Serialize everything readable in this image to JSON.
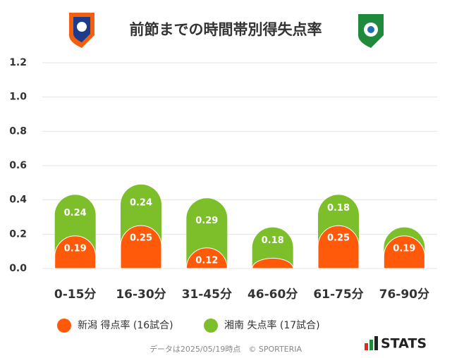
{
  "chart_data": {
    "type": "bar",
    "stacked": true,
    "title": "前節までの時間帯別得失点率",
    "categories": [
      "0-15分",
      "16-30分",
      "31-45分",
      "46-60分",
      "61-75分",
      "76-90分"
    ],
    "series": [
      {
        "name": "新潟 得点率 (16試合)",
        "color": "#ff5a0a",
        "values": [
          0.19,
          0.25,
          0.12,
          0.06,
          0.25,
          0.19
        ],
        "value_labels": [
          "0.19",
          "0.25",
          "0.12",
          null,
          "0.25",
          "0.19"
        ]
      },
      {
        "name": "湘南 失点率 (17試合)",
        "color": "#7dbf2a",
        "values": [
          0.24,
          0.24,
          0.29,
          0.18,
          0.18,
          0.05
        ],
        "value_labels": [
          "0.24",
          "0.24",
          "0.29",
          "0.18",
          "0.18",
          null
        ]
      }
    ],
    "ylim": [
      0,
      1.2
    ],
    "yticks": [
      {
        "value": 0,
        "label": "0.0"
      },
      0.2,
      0.4,
      0.6,
      0.8,
      {
        "value": 1,
        "label": "1.0"
      },
      1.2
    ],
    "grid": true,
    "footer": "データは2025/05/19時点　© SPORTERIA",
    "brand": "STATS"
  }
}
